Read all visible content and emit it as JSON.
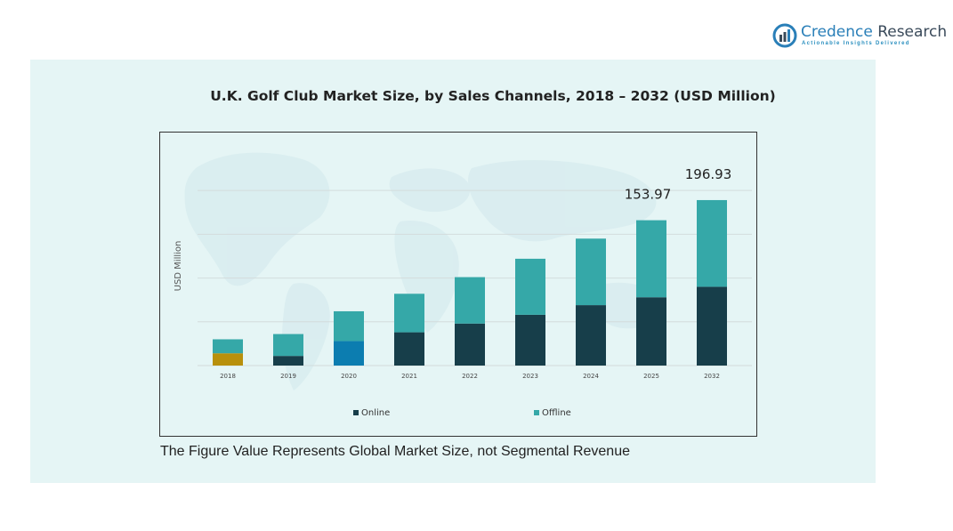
{
  "logo": {
    "name_primary": "Credence",
    "name_secondary": "Research",
    "tagline": "Actionable Insights Delivered"
  },
  "chart_title": "U.K. Golf Club Market Size, by Sales Channels, 2018 – 2032 (USD Million)",
  "footnote": "The Figure Value Represents Global Market Size, not Segmental Revenue",
  "colors": {
    "online": "#173e4a",
    "offline": "#35a8a8",
    "highlight_2018_online": "#b8900c",
    "highlight_2020_online": "#0c7db0",
    "panel": "#e5f5f5"
  },
  "chart_data": {
    "type": "bar",
    "stacked": true,
    "ylabel": "USD Million",
    "categories": [
      "2018",
      "2019",
      "2020",
      "2021",
      "2022",
      "2023",
      "2024",
      "2025",
      "2032"
    ],
    "series": [
      {
        "name": "Online",
        "values": [
          14,
          11,
          28,
          38,
          48,
          58,
          69,
          78,
          90
        ]
      },
      {
        "name": "Offline",
        "values": [
          16,
          25,
          34,
          44,
          53,
          64,
          76,
          88,
          99
        ]
      }
    ],
    "data_labels": [
      {
        "category": "2025",
        "text": "153.97"
      },
      {
        "category": "2032",
        "text": "196.93"
      }
    ],
    "ylim": [
      0,
      256
    ],
    "grid": true,
    "legend_position": "bottom"
  }
}
